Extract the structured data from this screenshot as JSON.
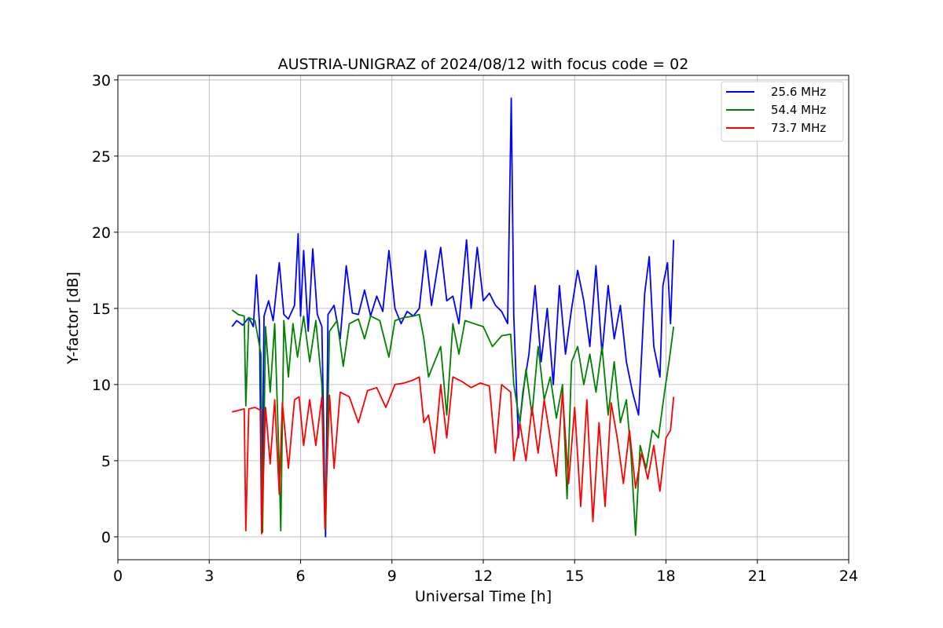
{
  "chart_data": {
    "type": "line",
    "title": "AUSTRIA-UNIGRAZ of 2024/08/12 with focus code = 02",
    "xlabel": "Universal Time [h]",
    "ylabel": "Y-factor [dB]",
    "xlim": [
      0,
      24
    ],
    "ylim": [
      -1.5,
      30.3
    ],
    "xticks": [
      0,
      3,
      6,
      9,
      12,
      15,
      18,
      21,
      24
    ],
    "yticks": [
      0,
      5,
      10,
      15,
      20,
      25,
      30
    ],
    "grid": true,
    "legend_position": "top-right",
    "series": [
      {
        "name": "25.6 MHz",
        "color": "#0000ff",
        "points": [
          [
            3.75,
            13.8
          ],
          [
            3.9,
            14.2
          ],
          [
            4.1,
            13.9
          ],
          [
            4.3,
            14.4
          ],
          [
            4.45,
            13.8
          ],
          [
            4.55,
            17.2
          ],
          [
            4.65,
            14.0
          ],
          [
            4.72,
            0.3
          ],
          [
            4.8,
            14.5
          ],
          [
            4.95,
            15.5
          ],
          [
            5.1,
            14.2
          ],
          [
            5.3,
            18.0
          ],
          [
            5.45,
            14.6
          ],
          [
            5.6,
            14.3
          ],
          [
            5.8,
            15.2
          ],
          [
            5.92,
            19.9
          ],
          [
            6.0,
            14.5
          ],
          [
            6.1,
            18.8
          ],
          [
            6.25,
            13.5
          ],
          [
            6.4,
            18.9
          ],
          [
            6.55,
            14.6
          ],
          [
            6.7,
            13.8
          ],
          [
            6.82,
            0.0
          ],
          [
            6.9,
            14.6
          ],
          [
            7.1,
            15.2
          ],
          [
            7.3,
            13.0
          ],
          [
            7.5,
            17.8
          ],
          [
            7.7,
            14.7
          ],
          [
            7.9,
            14.6
          ],
          [
            8.1,
            16.2
          ],
          [
            8.3,
            14.5
          ],
          [
            8.5,
            15.8
          ],
          [
            8.7,
            14.8
          ],
          [
            8.9,
            18.8
          ],
          [
            9.1,
            15.0
          ],
          [
            9.3,
            14.0
          ],
          [
            9.5,
            14.8
          ],
          [
            9.7,
            14.5
          ],
          [
            9.9,
            15.0
          ],
          [
            10.1,
            18.8
          ],
          [
            10.3,
            15.2
          ],
          [
            10.6,
            19.0
          ],
          [
            10.8,
            15.5
          ],
          [
            11.0,
            15.8
          ],
          [
            11.2,
            14.0
          ],
          [
            11.45,
            19.5
          ],
          [
            11.6,
            15.0
          ],
          [
            11.8,
            19.0
          ],
          [
            12.0,
            15.5
          ],
          [
            12.2,
            16.0
          ],
          [
            12.4,
            15.2
          ],
          [
            12.6,
            14.8
          ],
          [
            12.8,
            14.0
          ],
          [
            12.92,
            28.8
          ],
          [
            13.0,
            14.5
          ],
          [
            13.15,
            6.5
          ],
          [
            13.3,
            9.5
          ],
          [
            13.5,
            12.0
          ],
          [
            13.7,
            16.5
          ],
          [
            13.9,
            11.5
          ],
          [
            14.1,
            15.0
          ],
          [
            14.3,
            10.0
          ],
          [
            14.5,
            16.5
          ],
          [
            14.7,
            12.0
          ],
          [
            14.9,
            15.0
          ],
          [
            15.1,
            17.5
          ],
          [
            15.3,
            15.5
          ],
          [
            15.5,
            12.5
          ],
          [
            15.7,
            17.8
          ],
          [
            15.9,
            12.0
          ],
          [
            16.1,
            16.5
          ],
          [
            16.3,
            13.0
          ],
          [
            16.5,
            15.2
          ],
          [
            16.7,
            11.5
          ],
          [
            16.9,
            9.5
          ],
          [
            17.1,
            8.0
          ],
          [
            17.3,
            16.0
          ],
          [
            17.45,
            18.4
          ],
          [
            17.6,
            12.5
          ],
          [
            17.8,
            10.5
          ],
          [
            17.9,
            16.5
          ],
          [
            18.05,
            18.0
          ],
          [
            18.15,
            14.0
          ],
          [
            18.25,
            19.5
          ]
        ]
      },
      {
        "name": "54.4 MHz",
        "color": "#008000",
        "points": [
          [
            3.75,
            14.9
          ],
          [
            3.95,
            14.6
          ],
          [
            4.15,
            14.5
          ],
          [
            4.2,
            8.6
          ],
          [
            4.3,
            14.4
          ],
          [
            4.5,
            14.2
          ],
          [
            4.7,
            12.0
          ],
          [
            4.75,
            0.3
          ],
          [
            4.85,
            13.8
          ],
          [
            5.0,
            9.5
          ],
          [
            5.15,
            14.0
          ],
          [
            5.3,
            4.5
          ],
          [
            5.35,
            0.4
          ],
          [
            5.45,
            14.2
          ],
          [
            5.6,
            10.5
          ],
          [
            5.75,
            14.0
          ],
          [
            5.9,
            11.8
          ],
          [
            6.1,
            14.5
          ],
          [
            6.3,
            11.5
          ],
          [
            6.5,
            14.2
          ],
          [
            6.7,
            10.0
          ],
          [
            6.82,
            0.5
          ],
          [
            6.95,
            13.5
          ],
          [
            7.2,
            14.2
          ],
          [
            7.4,
            11.2
          ],
          [
            7.6,
            14.0
          ],
          [
            7.9,
            14.3
          ],
          [
            8.1,
            13.0
          ],
          [
            8.3,
            14.5
          ],
          [
            8.6,
            14.2
          ],
          [
            8.9,
            11.8
          ],
          [
            9.1,
            14.2
          ],
          [
            9.4,
            14.4
          ],
          [
            9.7,
            14.5
          ],
          [
            9.9,
            14.6
          ],
          [
            10.05,
            13.0
          ],
          [
            10.2,
            10.5
          ],
          [
            10.4,
            11.5
          ],
          [
            10.6,
            12.5
          ],
          [
            10.8,
            8.0
          ],
          [
            11.0,
            14.0
          ],
          [
            11.2,
            12.0
          ],
          [
            11.4,
            14.2
          ],
          [
            11.7,
            14.0
          ],
          [
            12.0,
            13.8
          ],
          [
            12.3,
            12.5
          ],
          [
            12.6,
            13.2
          ],
          [
            12.9,
            13.3
          ],
          [
            13.0,
            10.0
          ],
          [
            13.2,
            7.5
          ],
          [
            13.4,
            11.0
          ],
          [
            13.6,
            8.0
          ],
          [
            13.8,
            12.5
          ],
          [
            14.0,
            9.0
          ],
          [
            14.2,
            10.5
          ],
          [
            14.4,
            7.8
          ],
          [
            14.6,
            10.0
          ],
          [
            14.75,
            2.5
          ],
          [
            14.9,
            11.5
          ],
          [
            15.1,
            12.5
          ],
          [
            15.3,
            10.0
          ],
          [
            15.5,
            12.0
          ],
          [
            15.7,
            9.5
          ],
          [
            15.9,
            12.5
          ],
          [
            16.1,
            8.0
          ],
          [
            16.3,
            11.5
          ],
          [
            16.5,
            7.5
          ],
          [
            16.7,
            9.0
          ],
          [
            16.85,
            5.5
          ],
          [
            17.0,
            0.1
          ],
          [
            17.15,
            6.0
          ],
          [
            17.35,
            4.5
          ],
          [
            17.55,
            7.0
          ],
          [
            17.75,
            6.5
          ],
          [
            17.95,
            9.5
          ],
          [
            18.1,
            11.5
          ],
          [
            18.25,
            13.8
          ]
        ]
      },
      {
        "name": "73.7 MHz",
        "color": "#ff0000",
        "points": [
          [
            3.75,
            8.2
          ],
          [
            3.95,
            8.3
          ],
          [
            4.15,
            8.4
          ],
          [
            4.2,
            0.4
          ],
          [
            4.3,
            8.4
          ],
          [
            4.5,
            8.5
          ],
          [
            4.7,
            8.3
          ],
          [
            4.72,
            0.2
          ],
          [
            4.85,
            8.5
          ],
          [
            5.0,
            4.8
          ],
          [
            5.15,
            9.0
          ],
          [
            5.3,
            2.8
          ],
          [
            5.4,
            8.8
          ],
          [
            5.6,
            4.5
          ],
          [
            5.8,
            9.0
          ],
          [
            5.95,
            9.2
          ],
          [
            6.1,
            6.0
          ],
          [
            6.3,
            9.0
          ],
          [
            6.5,
            6.0
          ],
          [
            6.7,
            9.2
          ],
          [
            6.8,
            0.5
          ],
          [
            6.95,
            9.3
          ],
          [
            7.1,
            4.5
          ],
          [
            7.3,
            9.5
          ],
          [
            7.6,
            9.2
          ],
          [
            7.9,
            7.5
          ],
          [
            8.2,
            9.6
          ],
          [
            8.5,
            9.8
          ],
          [
            8.8,
            8.5
          ],
          [
            9.1,
            10.0
          ],
          [
            9.4,
            10.1
          ],
          [
            9.7,
            10.3
          ],
          [
            9.9,
            10.5
          ],
          [
            10.05,
            7.5
          ],
          [
            10.2,
            8.0
          ],
          [
            10.4,
            5.5
          ],
          [
            10.6,
            10.0
          ],
          [
            10.8,
            6.5
          ],
          [
            11.0,
            10.5
          ],
          [
            11.3,
            10.2
          ],
          [
            11.6,
            9.8
          ],
          [
            11.9,
            10.1
          ],
          [
            12.2,
            9.9
          ],
          [
            12.4,
            5.5
          ],
          [
            12.6,
            10.0
          ],
          [
            12.9,
            9.5
          ],
          [
            13.0,
            5.0
          ],
          [
            13.2,
            7.5
          ],
          [
            13.4,
            5.0
          ],
          [
            13.6,
            8.5
          ],
          [
            13.8,
            5.5
          ],
          [
            14.0,
            9.0
          ],
          [
            14.2,
            6.5
          ],
          [
            14.4,
            4.0
          ],
          [
            14.6,
            9.5
          ],
          [
            14.8,
            3.5
          ],
          [
            15.0,
            8.5
          ],
          [
            15.2,
            2.0
          ],
          [
            15.4,
            9.0
          ],
          [
            15.6,
            1.0
          ],
          [
            15.8,
            7.5
          ],
          [
            16.0,
            2.0
          ],
          [
            16.2,
            8.8
          ],
          [
            16.4,
            6.5
          ],
          [
            16.6,
            3.5
          ],
          [
            16.8,
            7.0
          ],
          [
            17.0,
            3.2
          ],
          [
            17.2,
            5.5
          ],
          [
            17.4,
            3.8
          ],
          [
            17.6,
            6.0
          ],
          [
            17.8,
            3.0
          ],
          [
            18.0,
            6.5
          ],
          [
            18.15,
            7.0
          ],
          [
            18.25,
            9.2
          ]
        ]
      }
    ]
  }
}
